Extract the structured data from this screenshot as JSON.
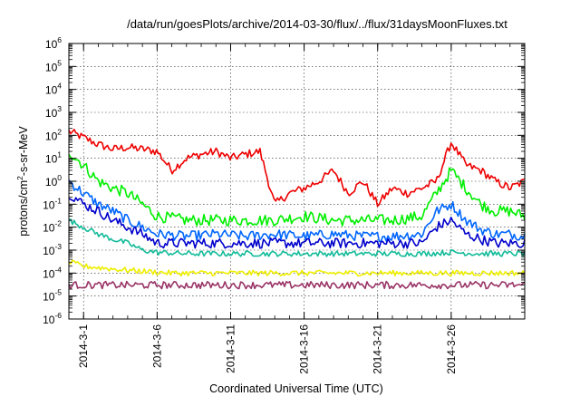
{
  "chart_data": {
    "type": "line",
    "title": "/data/run/goesPlots/archive/2014-03-30/flux/../flux/31daysMoonFluxes.txt",
    "xlabel": "Coordinated Universal Time (UTC)",
    "ylabel": "protons/cm²-s-sr-MeV",
    "ylabel_base": "protons/cm",
    "ylabel_sup": "2",
    "ylabel_rest": "-s-sr-MeV",
    "yscale": "log",
    "ylim": [
      1e-06,
      1000000.0
    ],
    "y_ticks": [
      {
        "mant": "10",
        "exp": "-6"
      },
      {
        "mant": "10",
        "exp": "-5"
      },
      {
        "mant": "10",
        "exp": "-4"
      },
      {
        "mant": "10",
        "exp": "-3"
      },
      {
        "mant": "10",
        "exp": "-2"
      },
      {
        "mant": "10",
        "exp": "-1"
      },
      {
        "mant": "10",
        "exp": "0"
      },
      {
        "mant": "10",
        "exp": "1"
      },
      {
        "mant": "10",
        "exp": "2"
      },
      {
        "mant": "10",
        "exp": "3"
      },
      {
        "mant": "10",
        "exp": "4"
      },
      {
        "mant": "10",
        "exp": "5"
      },
      {
        "mant": "10",
        "exp": "6"
      }
    ],
    "xlim": [
      "2014-02-28",
      "2014-03-31"
    ],
    "x_ticks": [
      "2014-3-1",
      "2014-3-6",
      "2014-3-11",
      "2014-3-16",
      "2014-3-21",
      "2014-3-26"
    ],
    "grid": true,
    "series": [
      {
        "color": "#ee0000",
        "points": [
          [
            "2014-02-28",
            150
          ],
          [
            "2014-03-01",
            80
          ],
          [
            "2014-03-02",
            40
          ],
          [
            "2014-03-03",
            25
          ],
          [
            "2014-03-04",
            30
          ],
          [
            "2014-03-05",
            25
          ],
          [
            "2014-03-06",
            20
          ],
          [
            "2014-03-07",
            3
          ],
          [
            "2014-03-08",
            10
          ],
          [
            "2014-03-09",
            15
          ],
          [
            "2014-03-10",
            20
          ],
          [
            "2014-03-11",
            10
          ],
          [
            "2014-03-12",
            15
          ],
          [
            "2014-03-13",
            20
          ],
          [
            "2014-03-14",
            0.1
          ],
          [
            "2014-03-15",
            0.3
          ],
          [
            "2014-03-16",
            0.5
          ],
          [
            "2014-03-17",
            1
          ],
          [
            "2014-03-18",
            3
          ],
          [
            "2014-03-19",
            0.3
          ],
          [
            "2014-03-20",
            1
          ],
          [
            "2014-03-21",
            0.1
          ],
          [
            "2014-03-22",
            0.5
          ],
          [
            "2014-03-23",
            0.3
          ],
          [
            "2014-03-24",
            0.5
          ],
          [
            "2014-03-25",
            1
          ],
          [
            "2014-03-26",
            50
          ],
          [
            "2014-03-27",
            5
          ],
          [
            "2014-03-28",
            3
          ],
          [
            "2014-03-29",
            1
          ],
          [
            "2014-03-30",
            0.5
          ],
          [
            "2014-03-31",
            1
          ]
        ]
      },
      {
        "color": "#00ee00",
        "points": [
          [
            "2014-02-28",
            20
          ],
          [
            "2014-03-01",
            5
          ],
          [
            "2014-03-02",
            1
          ],
          [
            "2014-03-03",
            0.5
          ],
          [
            "2014-03-04",
            0.3
          ],
          [
            "2014-03-05",
            0.1
          ],
          [
            "2014-03-06",
            0.03
          ],
          [
            "2014-03-08",
            0.02
          ],
          [
            "2014-03-10",
            0.02
          ],
          [
            "2014-03-12",
            0.02
          ],
          [
            "2014-03-14",
            0.02
          ],
          [
            "2014-03-16",
            0.03
          ],
          [
            "2014-03-18",
            0.02
          ],
          [
            "2014-03-20",
            0.02
          ],
          [
            "2014-03-22",
            0.02
          ],
          [
            "2014-03-24",
            0.03
          ],
          [
            "2014-03-25",
            0.3
          ],
          [
            "2014-03-26",
            3
          ],
          [
            "2014-03-27",
            0.5
          ],
          [
            "2014-03-28",
            0.1
          ],
          [
            "2014-03-29",
            0.05
          ],
          [
            "2014-03-30",
            0.05
          ],
          [
            "2014-03-31",
            0.03
          ]
        ]
      },
      {
        "color": "#0066ff",
        "points": [
          [
            "2014-02-28",
            1
          ],
          [
            "2014-03-01",
            0.3
          ],
          [
            "2014-03-02",
            0.1
          ],
          [
            "2014-03-03",
            0.05
          ],
          [
            "2014-03-04",
            0.02
          ],
          [
            "2014-03-05",
            0.01
          ],
          [
            "2014-03-06",
            0.005
          ],
          [
            "2014-03-08",
            0.004
          ],
          [
            "2014-03-10",
            0.005
          ],
          [
            "2014-03-12",
            0.004
          ],
          [
            "2014-03-14",
            0.005
          ],
          [
            "2014-03-16",
            0.004
          ],
          [
            "2014-03-18",
            0.005
          ],
          [
            "2014-03-20",
            0.004
          ],
          [
            "2014-03-22",
            0.004
          ],
          [
            "2014-03-24",
            0.005
          ],
          [
            "2014-03-25",
            0.05
          ],
          [
            "2014-03-26",
            0.1
          ],
          [
            "2014-03-27",
            0.02
          ],
          [
            "2014-03-28",
            0.008
          ],
          [
            "2014-03-29",
            0.005
          ],
          [
            "2014-03-30",
            0.005
          ],
          [
            "2014-03-31",
            0.004
          ]
        ]
      },
      {
        "color": "#0000cc",
        "points": [
          [
            "2014-02-28",
            0.3
          ],
          [
            "2014-03-01",
            0.1
          ],
          [
            "2014-03-02",
            0.05
          ],
          [
            "2014-03-03",
            0.02
          ],
          [
            "2014-03-04",
            0.01
          ],
          [
            "2014-03-05",
            0.005
          ],
          [
            "2014-03-06",
            0.002
          ],
          [
            "2014-03-08",
            0.002
          ],
          [
            "2014-03-10",
            0.002
          ],
          [
            "2014-03-12",
            0.002
          ],
          [
            "2014-03-14",
            0.002
          ],
          [
            "2014-03-16",
            0.002
          ],
          [
            "2014-03-18",
            0.002
          ],
          [
            "2014-03-20",
            0.002
          ],
          [
            "2014-03-22",
            0.002
          ],
          [
            "2014-03-24",
            0.002
          ],
          [
            "2014-03-25",
            0.01
          ],
          [
            "2014-03-26",
            0.02
          ],
          [
            "2014-03-27",
            0.005
          ],
          [
            "2014-03-28",
            0.003
          ],
          [
            "2014-03-29",
            0.002
          ],
          [
            "2014-03-30",
            0.002
          ],
          [
            "2014-03-31",
            0.002
          ]
        ]
      },
      {
        "color": "#11bb99",
        "points": [
          [
            "2014-02-28",
            0.02
          ],
          [
            "2014-03-01",
            0.01
          ],
          [
            "2014-03-02",
            0.005
          ],
          [
            "2014-03-03",
            0.003
          ],
          [
            "2014-03-04",
            0.002
          ],
          [
            "2014-03-05",
            0.001
          ],
          [
            "2014-03-06",
            0.0008
          ],
          [
            "2014-03-08",
            0.0007
          ],
          [
            "2014-03-10",
            0.0007
          ],
          [
            "2014-03-12",
            0.0007
          ],
          [
            "2014-03-14",
            0.0007
          ],
          [
            "2014-03-16",
            0.0007
          ],
          [
            "2014-03-18",
            0.0007
          ],
          [
            "2014-03-20",
            0.0007
          ],
          [
            "2014-03-22",
            0.0007
          ],
          [
            "2014-03-24",
            0.0007
          ],
          [
            "2014-03-26",
            0.0008
          ],
          [
            "2014-03-28",
            0.0007
          ],
          [
            "2014-03-30",
            0.0007
          ],
          [
            "2014-03-31",
            0.0007
          ]
        ]
      },
      {
        "color": "#eeee00",
        "points": [
          [
            "2014-02-28",
            0.0003
          ],
          [
            "2014-03-01",
            0.0002
          ],
          [
            "2014-03-03",
            0.00015
          ],
          [
            "2014-03-05",
            0.00012
          ],
          [
            "2014-03-07",
            0.0001
          ],
          [
            "2014-03-10",
            0.0001
          ],
          [
            "2014-03-13",
            0.0001
          ],
          [
            "2014-03-16",
            0.0001
          ],
          [
            "2014-03-19",
            0.0001
          ],
          [
            "2014-03-22",
            0.0001
          ],
          [
            "2014-03-25",
            0.0001
          ],
          [
            "2014-03-28",
            0.0001
          ],
          [
            "2014-03-31",
            0.0001
          ]
        ]
      },
      {
        "color": "#993366",
        "points": [
          [
            "2014-02-28",
            3e-05
          ],
          [
            "2014-03-03",
            3e-05
          ],
          [
            "2014-03-06",
            3e-05
          ],
          [
            "2014-03-09",
            3e-05
          ],
          [
            "2014-03-12",
            3e-05
          ],
          [
            "2014-03-15",
            3e-05
          ],
          [
            "2014-03-18",
            3e-05
          ],
          [
            "2014-03-21",
            3e-05
          ],
          [
            "2014-03-24",
            3e-05
          ],
          [
            "2014-03-27",
            3e-05
          ],
          [
            "2014-03-31",
            3e-05
          ]
        ]
      }
    ]
  }
}
